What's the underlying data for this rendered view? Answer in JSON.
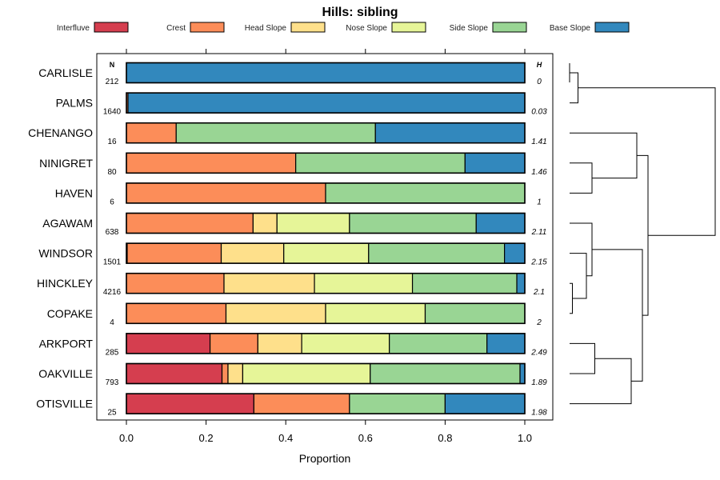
{
  "chart_data": {
    "type": "stacked-bar",
    "orientation": "horizontal",
    "title": "Hills: sibling",
    "xlabel": "Proportion",
    "xlim": [
      0,
      1
    ],
    "x_ticks": [
      0.0,
      0.2,
      0.4,
      0.6,
      0.8,
      1.0
    ],
    "x_tick_labels": [
      "0.0",
      "0.2",
      "0.4",
      "0.6",
      "0.8",
      "1.0"
    ],
    "n_header": "N",
    "h_header": "H",
    "legend": [
      {
        "label": "Interfluve",
        "color": "#D53E4F"
      },
      {
        "label": "Crest",
        "color": "#FC8D59"
      },
      {
        "label": "Head Slope",
        "color": "#FEE08B"
      },
      {
        "label": "Nose Slope",
        "color": "#E6F598"
      },
      {
        "label": "Side Slope",
        "color": "#99D594"
      },
      {
        "label": "Base Slope",
        "color": "#3288BD"
      }
    ],
    "rows": [
      {
        "name": "CARLISLE",
        "n": "212",
        "h": "0",
        "values": [
          0,
          0,
          0,
          0,
          0,
          1.0
        ]
      },
      {
        "name": "PALMS",
        "n": "1640",
        "h": "0.03",
        "values": [
          0,
          0.004,
          0,
          0,
          0,
          0.996
        ]
      },
      {
        "name": "CHENANGO",
        "n": "16",
        "h": "1.41",
        "values": [
          0,
          0.125,
          0,
          0,
          0.5,
          0.375
        ]
      },
      {
        "name": "NINIGRET",
        "n": "80",
        "h": "1.46",
        "values": [
          0,
          0.425,
          0,
          0,
          0.425,
          0.15
        ]
      },
      {
        "name": "HAVEN",
        "n": "6",
        "h": "1",
        "values": [
          0,
          0.5,
          0,
          0,
          0.5,
          0
        ]
      },
      {
        "name": "AGAWAM",
        "n": "638",
        "h": "2.11",
        "values": [
          0,
          0.318,
          0.06,
          0.182,
          0.318,
          0.122
        ]
      },
      {
        "name": "WINDSOR",
        "n": "1501",
        "h": "2.15",
        "values": [
          0.002,
          0.236,
          0.157,
          0.213,
          0.341,
          0.051
        ]
      },
      {
        "name": "HINCKLEY",
        "n": "4216",
        "h": "2.1",
        "values": [
          0,
          0.245,
          0.227,
          0.246,
          0.262,
          0.02
        ]
      },
      {
        "name": "COPAKE",
        "n": "4",
        "h": "2",
        "values": [
          0,
          0.25,
          0.25,
          0.25,
          0.25,
          0
        ]
      },
      {
        "name": "ARKPORT",
        "n": "285",
        "h": "2.49",
        "values": [
          0.21,
          0.12,
          0.11,
          0.22,
          0.245,
          0.095
        ]
      },
      {
        "name": "OAKVILLE",
        "n": "793",
        "h": "1.89",
        "values": [
          0.24,
          0.015,
          0.037,
          0.32,
          0.376,
          0.012
        ]
      },
      {
        "name": "OTISVILLE",
        "n": "25",
        "h": "1.98",
        "values": [
          0.32,
          0.24,
          0,
          0,
          0.24,
          0.2
        ]
      }
    ],
    "dendrogram": {
      "leaf_order": [
        "CARLISLE",
        "PALMS",
        "CHENANGO",
        "NINIGRET",
        "HAVEN",
        "AGAWAM",
        "WINDSOR",
        "HINCKLEY",
        "COPAKE",
        "ARKPORT",
        "OAKVILLE",
        "OTISVILLE"
      ],
      "merges": [
        {
          "a": "HINCKLEY",
          "b": "COPAKE",
          "height": 0.05
        },
        {
          "a": "CARLISLE",
          "b": "PALMS",
          "height": 0.15
        },
        {
          "a": "WINDSOR",
          "b": "m0",
          "height": 0.3
        },
        {
          "a": "AGAWAM",
          "b": "m2",
          "height": 0.4
        },
        {
          "a": "NINIGRET",
          "b": "HAVEN",
          "height": 0.4
        },
        {
          "a": "ARKPORT",
          "b": "OAKVILLE",
          "height": 0.45
        },
        {
          "a": "m5",
          "b": "OTISVILLE",
          "height": 1.1
        },
        {
          "a": "m3",
          "b": "m6",
          "height": 1.3
        },
        {
          "a": "CHENANGO",
          "b": "m4",
          "height": 1.2
        },
        {
          "a": "m8",
          "b": "m7",
          "height": 1.4
        },
        {
          "a": "m1",
          "b": "m9",
          "height": 2.6
        }
      ]
    }
  }
}
